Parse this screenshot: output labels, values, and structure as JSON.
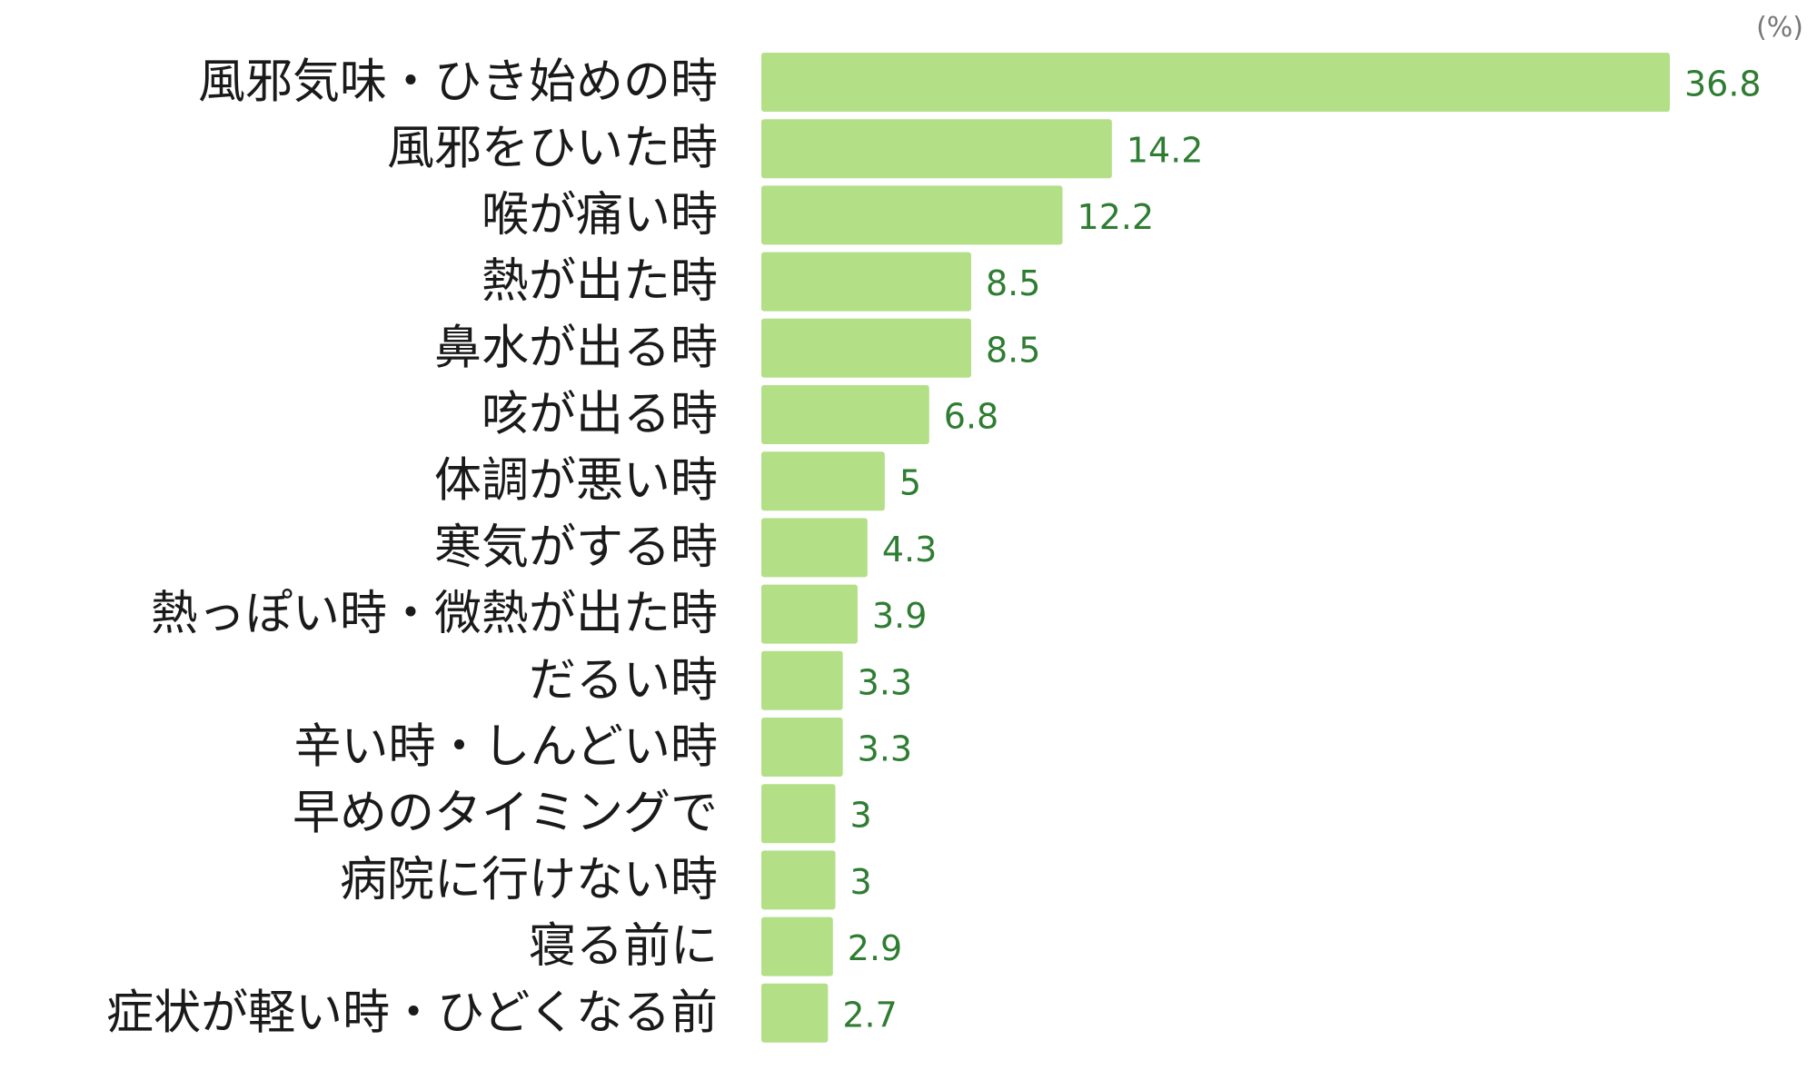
{
  "chart_data": {
    "type": "bar",
    "orientation": "horizontal",
    "unit_label": "(%)",
    "categories": [
      "風邪気味・ひき始めの時",
      "風邪をひいた時",
      "喉が痛い時",
      "熱が出た時",
      "鼻水が出る時",
      "咳が出る時",
      "体調が悪い時",
      "寒気がする時",
      "熱っぽい時・微熱が出た時",
      "だるい時",
      "辛い時・しんどい時",
      "早めのタイミングで",
      "病院に行けない時",
      "寝る前に",
      "症状が軽い時・ひどくなる前"
    ],
    "values": [
      36.8,
      14.2,
      12.2,
      8.5,
      8.5,
      6.8,
      5,
      4.3,
      3.9,
      3.3,
      3.3,
      3,
      3,
      2.9,
      2.7
    ],
    "value_labels": [
      "36.8",
      "14.2",
      "12.2",
      "8.5",
      "8.5",
      "6.8",
      "5",
      "4.3",
      "3.9",
      "3.3",
      "3.3",
      "3",
      "3",
      "2.9",
      "2.7"
    ],
    "xlim": [
      0,
      36.8
    ],
    "grid": false,
    "legend": "none",
    "colors": {
      "bar": "#b3df87",
      "value_text": "#2e7d32",
      "category_text": "#1a1a1a",
      "unit_text": "#777777"
    }
  }
}
